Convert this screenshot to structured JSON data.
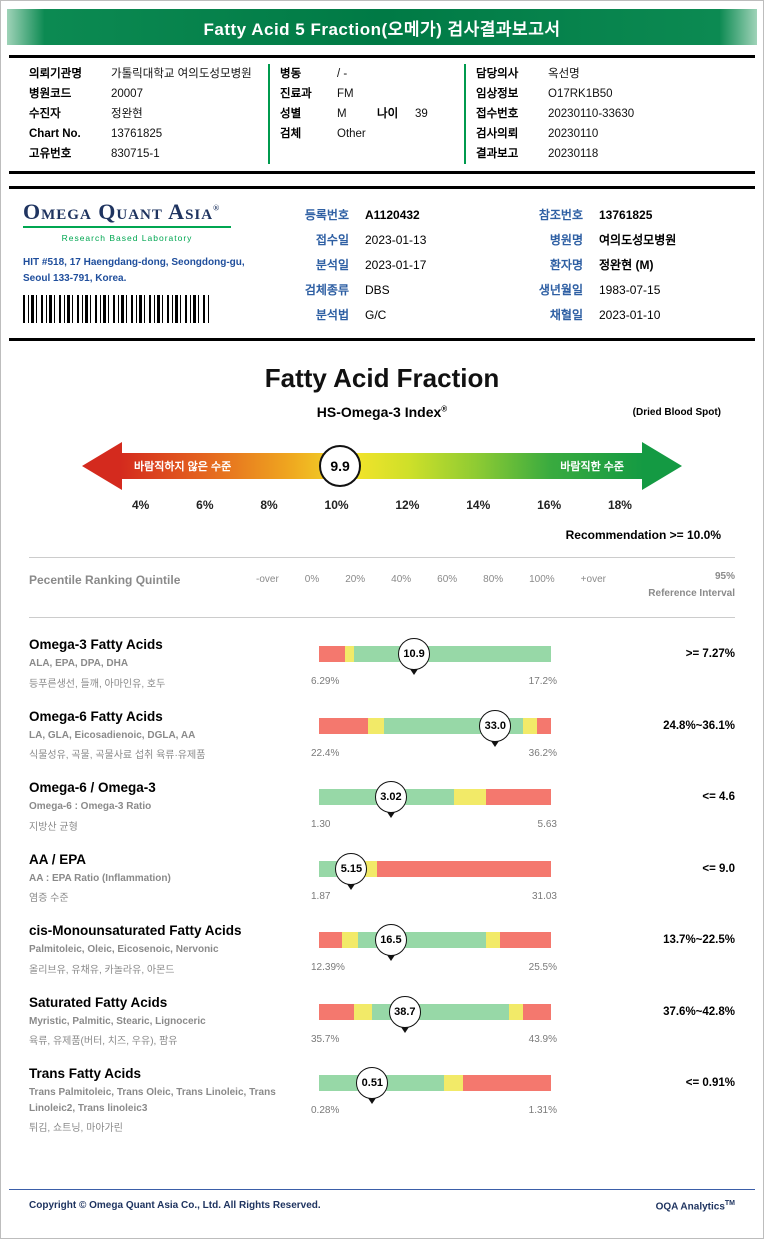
{
  "header": {
    "title": "Fatty Acid 5 Fraction(오메가) 검사결과보고서"
  },
  "colors": {
    "header_green": "#007a45",
    "accent_green": "#00a651",
    "logo_navy": "#1f3460",
    "label_blue": "#2e5fa3",
    "bar_red": "#f4786e",
    "bar_yellow": "#f2ea68",
    "bar_green": "#97d8a7"
  },
  "patient_col1": [
    {
      "label": "의뢰기관명",
      "value": "가톨릭대학교 여의도성모병원"
    },
    {
      "label": "병원코드",
      "value": "20007"
    },
    {
      "label": "수진자",
      "value": "정완현"
    },
    {
      "label": "Chart No.",
      "value": "13761825"
    },
    {
      "label": "고유번호",
      "value": "830715-1"
    }
  ],
  "patient_col2": [
    {
      "label": "병동",
      "value": "/ -"
    },
    {
      "label": "진료과",
      "value": "FM"
    },
    {
      "label": "성별",
      "value": "M",
      "label2": "나이",
      "value2": "39"
    },
    {
      "label": "검체",
      "value": "Other"
    }
  ],
  "patient_col3": [
    {
      "label": "담당의사",
      "value": "옥선명"
    },
    {
      "label": "임상정보",
      "value": "O17RK1B50"
    },
    {
      "label": "접수번호",
      "value": "20230110-33630"
    },
    {
      "label": "검사의뢰",
      "value": "20230110"
    },
    {
      "label": "결과보고",
      "value": "20230118"
    }
  ],
  "lab": {
    "logo_name": "Omega Quant Asia",
    "logo_reg": "®",
    "logo_sub": "Research Based Laboratory",
    "address1": "HIT #518, 17 Haengdang-dong, Seongdong-gu,",
    "address2": "Seoul 133-791, Korea.",
    "mid": [
      {
        "label": "등록번호",
        "value": "A1120432"
      },
      {
        "label": "접수일",
        "value": "2023-01-13"
      },
      {
        "label": "분석일",
        "value": "2023-01-17"
      },
      {
        "label": "검체종류",
        "value": "DBS"
      },
      {
        "label": "분석법",
        "value": "G/C"
      }
    ],
    "right": [
      {
        "label": "참조번호",
        "value": "13761825"
      },
      {
        "label": "병원명",
        "value": "여의도성모병원"
      },
      {
        "label": "환자명",
        "value": "정완현 (M)"
      },
      {
        "label": "생년월일",
        "value": "1983-07-15"
      },
      {
        "label": "채혈일",
        "value": "2023-01-10"
      }
    ]
  },
  "gauge": {
    "title": "Fatty Acid Fraction",
    "index_label": "HS-Omega-3 Index",
    "index_reg": "®",
    "sample_type": "(Dried Blood Spot)",
    "left_label": "바람직하지 않은 수준",
    "right_label": "바람직한 수준",
    "value": "9.9",
    "marker_pct": 42,
    "ticks": [
      "4%",
      "6%",
      "8%",
      "10%",
      "12%",
      "14%",
      "16%",
      "18%"
    ],
    "recommendation": "Recommendation  >= 10.0%"
  },
  "percentile": {
    "label": "Pecentile Ranking Quintile",
    "ticks": [
      "-over",
      "0%",
      "20%",
      "40%",
      "60%",
      "80%",
      "100%",
      "+over"
    ],
    "ref_top": "95%",
    "ref_bottom": "Reference Interval"
  },
  "fractions": [
    {
      "title": "Omega-3 Fatty Acids",
      "subtitle": "ALA, EPA, DPA, DHA",
      "desc": "등푸른생선, 들깨, 아마인유, 호두",
      "value": "10.9",
      "min": "6.29%",
      "max": "17.2%",
      "ref": ">= 7.27%",
      "marker_pct": 41,
      "segments": [
        {
          "color": "red",
          "w": 11
        },
        {
          "color": "yellow",
          "w": 4
        },
        {
          "color": "green",
          "w": 85
        }
      ]
    },
    {
      "title": "Omega-6 Fatty Acids",
      "subtitle": "LA, GLA, Eicosadienoic, DGLA, AA",
      "desc": "식물성유, 곡물, 곡물사료 섭취 육류·유제품",
      "value": "33.0",
      "min": "22.4%",
      "max": "36.2%",
      "ref": "24.8%~36.1%",
      "marker_pct": 76,
      "segments": [
        {
          "color": "red",
          "w": 21
        },
        {
          "color": "yellow",
          "w": 7
        },
        {
          "color": "green",
          "w": 60
        },
        {
          "color": "yellow",
          "w": 6
        },
        {
          "color": "red",
          "w": 6
        }
      ]
    },
    {
      "title": "Omega-6 / Omega-3",
      "subtitle": "Omega-6 : Omega-3 Ratio",
      "desc": "지방산 균형",
      "value": "3.02",
      "min": "1.30",
      "max": "5.63",
      "ref": "<= 4.6",
      "marker_pct": 31,
      "segments": [
        {
          "color": "green",
          "w": 58
        },
        {
          "color": "yellow",
          "w": 14
        },
        {
          "color": "red",
          "w": 28
        }
      ]
    },
    {
      "title": "AA / EPA",
      "subtitle": "AA : EPA Ratio (Inflammation)",
      "desc": "염증 수준",
      "value": "5.15",
      "min": "1.87",
      "max": "31.03",
      "ref": "<= 9.0",
      "marker_pct": 14,
      "segments": [
        {
          "color": "green",
          "w": 17
        },
        {
          "color": "yellow",
          "w": 8
        },
        {
          "color": "red",
          "w": 75
        }
      ]
    },
    {
      "title": "cis-Monounsaturated Fatty Acids",
      "subtitle": "Palmitoleic, Oleic, Eicosenoic, Nervonic",
      "desc": "올리브유, 유채유, 카놀라유, 아몬드",
      "value": "16.5",
      "min": "12.39%",
      "max": "25.5%",
      "ref": "13.7%~22.5%",
      "marker_pct": 31,
      "segments": [
        {
          "color": "red",
          "w": 10
        },
        {
          "color": "yellow",
          "w": 7
        },
        {
          "color": "green",
          "w": 55
        },
        {
          "color": "yellow",
          "w": 6
        },
        {
          "color": "red",
          "w": 22
        }
      ]
    },
    {
      "title": "Saturated Fatty Acids",
      "subtitle": "Myristic, Palmitic, Stearic, Lignoceric",
      "desc": "육류, 유제품(버터, 치즈, 우유), 팜유",
      "value": "38.7",
      "min": "35.7%",
      "max": "43.9%",
      "ref": "37.6%~42.8%",
      "marker_pct": 37,
      "segments": [
        {
          "color": "red",
          "w": 15
        },
        {
          "color": "yellow",
          "w": 8
        },
        {
          "color": "green",
          "w": 59
        },
        {
          "color": "yellow",
          "w": 6
        },
        {
          "color": "red",
          "w": 12
        }
      ]
    },
    {
      "title": "Trans Fatty Acids",
      "subtitle": "Trans Palmitoleic, Trans Oleic, Trans Linoleic, Trans Linoleic2, Trans linoleic3",
      "desc": "튀김, 쇼트닝, 마아가린",
      "value": "0.51",
      "min": "0.28%",
      "max": "1.31%",
      "ref": "<= 0.91%",
      "marker_pct": 23,
      "segments": [
        {
          "color": "green",
          "w": 54
        },
        {
          "color": "yellow",
          "w": 8
        },
        {
          "color": "red",
          "w": 38
        }
      ]
    }
  ],
  "footer": {
    "copyright": "Copyright © Omega Quant Asia Co., Ltd.  All Rights Reserved.",
    "brand": "OQA Analytics",
    "brand_sup": "TM"
  }
}
